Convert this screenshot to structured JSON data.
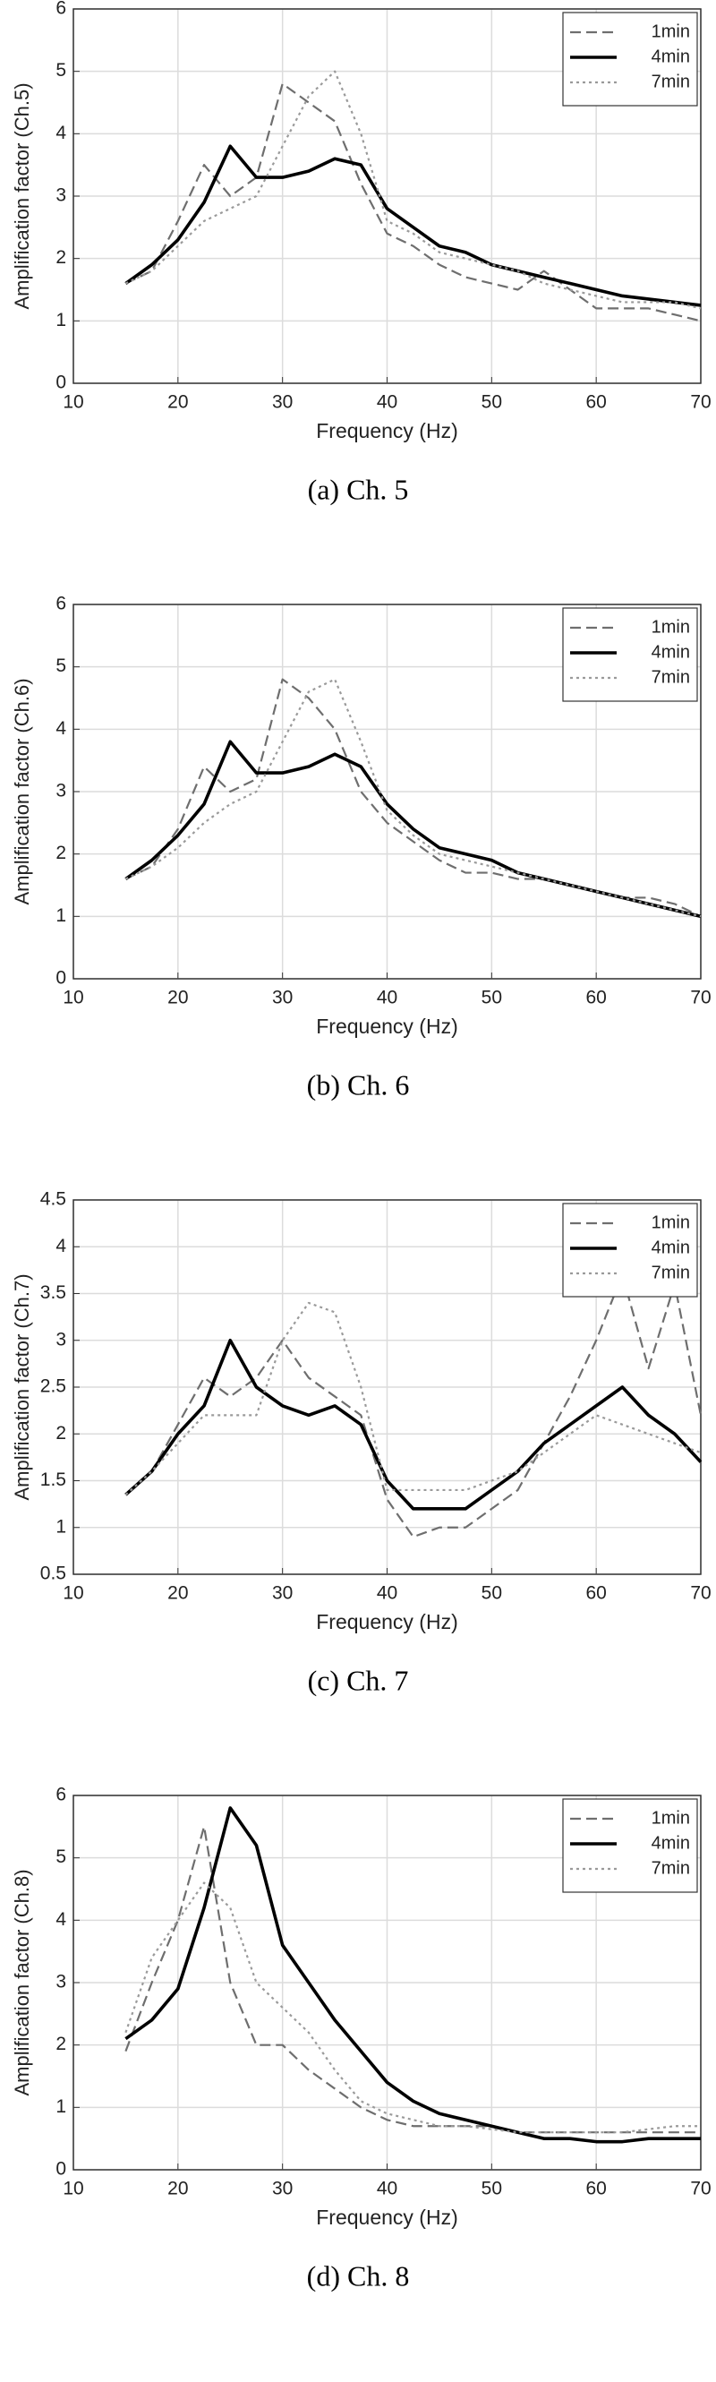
{
  "chart_data": [
    {
      "type": "line",
      "caption": "(a)  Ch. 5",
      "xlabel": "Frequency (Hz)",
      "ylabel": "Amplification factor (Ch.5)",
      "x": [
        15,
        17.5,
        20,
        22.5,
        25,
        27.5,
        30,
        32.5,
        35,
        37.5,
        40,
        42.5,
        45,
        47.5,
        50,
        52.5,
        55,
        57.5,
        60,
        62.5,
        65,
        67.5,
        70
      ],
      "xlim": [
        10,
        70
      ],
      "xticks": [
        10,
        20,
        30,
        40,
        50,
        60,
        70
      ],
      "ylim": [
        0,
        6
      ],
      "yticks": [
        0,
        1,
        2,
        3,
        4,
        5,
        6
      ],
      "grid": true,
      "legend": "upper-right",
      "series": [
        {
          "name": "1min",
          "color": "#6e6e6e",
          "dash": "dashed",
          "values": [
            1.6,
            1.8,
            2.6,
            3.5,
            3.0,
            3.3,
            4.8,
            4.5,
            4.2,
            3.2,
            2.4,
            2.2,
            1.9,
            1.7,
            1.6,
            1.5,
            1.8,
            1.5,
            1.2,
            1.2,
            1.2,
            1.1,
            1.0
          ]
        },
        {
          "name": "4min",
          "color": "#000000",
          "dash": "solid",
          "values": [
            1.6,
            1.9,
            2.3,
            2.9,
            3.8,
            3.3,
            3.3,
            3.4,
            3.6,
            3.5,
            2.8,
            2.5,
            2.2,
            2.1,
            1.9,
            1.8,
            1.7,
            1.6,
            1.5,
            1.4,
            1.35,
            1.3,
            1.25
          ]
        },
        {
          "name": "7min",
          "color": "#9a9a9a",
          "dash": "dotted",
          "values": [
            1.6,
            1.8,
            2.2,
            2.6,
            2.8,
            3.0,
            3.8,
            4.6,
            5.0,
            4.0,
            2.6,
            2.4,
            2.1,
            2.0,
            1.9,
            1.8,
            1.6,
            1.5,
            1.4,
            1.3,
            1.3,
            1.3,
            1.2
          ]
        }
      ]
    },
    {
      "type": "line",
      "caption": "(b)  Ch. 6",
      "xlabel": "Frequency (Hz)",
      "ylabel": "Amplification factor (Ch.6)",
      "x": [
        15,
        17.5,
        20,
        22.5,
        25,
        27.5,
        30,
        32.5,
        35,
        37.5,
        40,
        42.5,
        45,
        47.5,
        50,
        52.5,
        55,
        57.5,
        60,
        62.5,
        65,
        67.5,
        70
      ],
      "xlim": [
        10,
        70
      ],
      "xticks": [
        10,
        20,
        30,
        40,
        50,
        60,
        70
      ],
      "ylim": [
        0,
        6
      ],
      "yticks": [
        0,
        1,
        2,
        3,
        4,
        5,
        6
      ],
      "grid": true,
      "legend": "upper-right",
      "series": [
        {
          "name": "1min",
          "color": "#6e6e6e",
          "dash": "dashed",
          "values": [
            1.6,
            1.8,
            2.4,
            3.4,
            3.0,
            3.2,
            4.8,
            4.5,
            4.0,
            3.0,
            2.5,
            2.2,
            1.9,
            1.7,
            1.7,
            1.6,
            1.6,
            1.5,
            1.4,
            1.3,
            1.3,
            1.2,
            1.0
          ]
        },
        {
          "name": "4min",
          "color": "#000000",
          "dash": "solid",
          "values": [
            1.6,
            1.9,
            2.3,
            2.8,
            3.8,
            3.3,
            3.3,
            3.4,
            3.6,
            3.4,
            2.8,
            2.4,
            2.1,
            2.0,
            1.9,
            1.7,
            1.6,
            1.5,
            1.4,
            1.3,
            1.2,
            1.1,
            1.0
          ]
        },
        {
          "name": "7min",
          "color": "#9a9a9a",
          "dash": "dotted",
          "values": [
            1.6,
            1.8,
            2.1,
            2.5,
            2.8,
            3.0,
            3.8,
            4.6,
            4.8,
            3.8,
            2.7,
            2.3,
            2.0,
            1.9,
            1.8,
            1.7,
            1.6,
            1.5,
            1.4,
            1.3,
            1.2,
            1.1,
            1.0
          ]
        }
      ]
    },
    {
      "type": "line",
      "caption": "(c)  Ch. 7",
      "xlabel": "Frequency (Hz)",
      "ylabel": "Amplification factor (Ch.7)",
      "x": [
        15,
        17.5,
        20,
        22.5,
        25,
        27.5,
        30,
        32.5,
        35,
        37.5,
        40,
        42.5,
        45,
        47.5,
        50,
        52.5,
        55,
        57.5,
        60,
        62.5,
        65,
        67.5,
        70
      ],
      "xlim": [
        10,
        70
      ],
      "xticks": [
        10,
        20,
        30,
        40,
        50,
        60,
        70
      ],
      "ylim": [
        0.5,
        4.5
      ],
      "yticks": [
        0.5,
        1,
        1.5,
        2,
        2.5,
        3,
        3.5,
        4,
        4.5
      ],
      "grid": true,
      "legend": "upper-right",
      "series": [
        {
          "name": "1min",
          "color": "#6e6e6e",
          "dash": "dashed",
          "values": [
            1.35,
            1.6,
            2.1,
            2.6,
            2.4,
            2.6,
            3.0,
            2.6,
            2.4,
            2.2,
            1.3,
            0.9,
            1.0,
            1.0,
            1.2,
            1.4,
            1.9,
            2.4,
            3.0,
            3.7,
            2.7,
            3.6,
            2.2
          ]
        },
        {
          "name": "4min",
          "color": "#000000",
          "dash": "solid",
          "values": [
            1.35,
            1.6,
            2.0,
            2.3,
            3.0,
            2.5,
            2.3,
            2.2,
            2.3,
            2.1,
            1.5,
            1.2,
            1.2,
            1.2,
            1.4,
            1.6,
            1.9,
            2.1,
            2.3,
            2.5,
            2.2,
            2.0,
            1.7
          ]
        },
        {
          "name": "7min",
          "color": "#9a9a9a",
          "dash": "dotted",
          "values": [
            1.35,
            1.6,
            1.9,
            2.2,
            2.2,
            2.2,
            3.0,
            3.4,
            3.3,
            2.5,
            1.4,
            1.4,
            1.4,
            1.4,
            1.5,
            1.6,
            1.8,
            2.0,
            2.2,
            2.1,
            2.0,
            1.9,
            1.8
          ]
        }
      ]
    },
    {
      "type": "line",
      "caption": "(d)  Ch. 8",
      "xlabel": "Frequency (Hz)",
      "ylabel": "Amplification factor (Ch.8)",
      "x": [
        15,
        17.5,
        20,
        22.5,
        25,
        27.5,
        30,
        32.5,
        35,
        37.5,
        40,
        42.5,
        45,
        47.5,
        50,
        52.5,
        55,
        57.5,
        60,
        62.5,
        65,
        67.5,
        70
      ],
      "xlim": [
        10,
        70
      ],
      "xticks": [
        10,
        20,
        30,
        40,
        50,
        60,
        70
      ],
      "ylim": [
        0,
        6
      ],
      "yticks": [
        0,
        1,
        2,
        3,
        4,
        5,
        6
      ],
      "grid": true,
      "legend": "upper-right",
      "series": [
        {
          "name": "1min",
          "color": "#6e6e6e",
          "dash": "dashed",
          "values": [
            1.9,
            3.0,
            4.0,
            5.5,
            3.0,
            2.0,
            2.0,
            1.6,
            1.3,
            1.0,
            0.8,
            0.7,
            0.7,
            0.7,
            0.7,
            0.6,
            0.6,
            0.6,
            0.6,
            0.6,
            0.6,
            0.6,
            0.6
          ]
        },
        {
          "name": "4min",
          "color": "#000000",
          "dash": "solid",
          "values": [
            2.1,
            2.4,
            2.9,
            4.2,
            5.8,
            5.2,
            3.6,
            3.0,
            2.4,
            1.9,
            1.4,
            1.1,
            0.9,
            0.8,
            0.7,
            0.6,
            0.5,
            0.5,
            0.45,
            0.45,
            0.5,
            0.5,
            0.5
          ]
        },
        {
          "name": "7min",
          "color": "#9a9a9a",
          "dash": "dotted",
          "values": [
            2.2,
            3.4,
            4.0,
            4.6,
            4.2,
            3.0,
            2.6,
            2.2,
            1.6,
            1.1,
            0.9,
            0.8,
            0.7,
            0.7,
            0.65,
            0.6,
            0.6,
            0.6,
            0.6,
            0.6,
            0.65,
            0.7,
            0.7
          ]
        }
      ]
    }
  ]
}
